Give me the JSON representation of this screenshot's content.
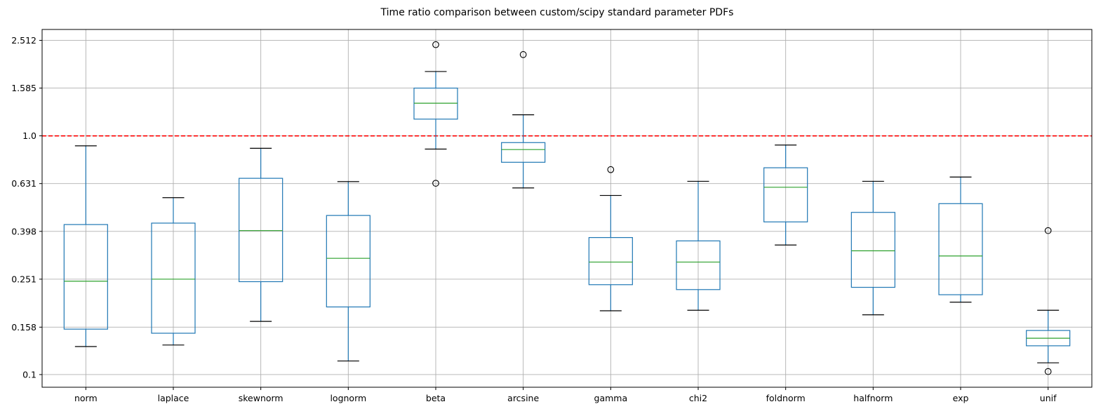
{
  "chart_data": {
    "type": "box",
    "title": "Time ratio comparison between custom/scipy standard parameter PDFs",
    "xlabel": "",
    "ylabel": "",
    "yscale": "log",
    "ylim": [
      0.0885,
      2.79
    ],
    "yticks": [
      0.1,
      0.158,
      0.251,
      0.398,
      0.631,
      1.0,
      1.585,
      2.512
    ],
    "ytick_labels": [
      "0.1",
      "0.158",
      "0.251",
      "0.398",
      "0.631",
      "1.0",
      "1.585",
      "2.512"
    ],
    "grid": true,
    "reference_line": {
      "y": 1.0,
      "color": "#ff0000",
      "style": "dashed"
    },
    "colors": {
      "box": "#1f77b4",
      "median": "#2ca02c",
      "grid": "#b0b0b0",
      "cap": "#000000"
    },
    "categories": [
      "norm",
      "laplace",
      "skewnorm",
      "lognorm",
      "beta",
      "arcsine",
      "gamma",
      "chi2",
      "foldnorm",
      "halfnorm",
      "exp",
      "unif"
    ],
    "boxes": [
      {
        "label": "norm",
        "whislo": 0.131,
        "q1": 0.155,
        "med": 0.246,
        "q3": 0.425,
        "whishi": 0.908,
        "fliers": []
      },
      {
        "label": "laplace",
        "whislo": 0.133,
        "q1": 0.149,
        "med": 0.251,
        "q3": 0.431,
        "whishi": 0.551,
        "fliers": []
      },
      {
        "label": "skewnorm",
        "whislo": 0.167,
        "q1": 0.245,
        "med": 0.401,
        "q3": 0.664,
        "whishi": 0.887,
        "fliers": []
      },
      {
        "label": "lognorm",
        "whislo": 0.114,
        "q1": 0.192,
        "med": 0.307,
        "q3": 0.464,
        "whishi": 0.643,
        "fliers": []
      },
      {
        "label": "beta",
        "whislo": 0.88,
        "q1": 1.175,
        "med": 1.37,
        "q3": 1.585,
        "whishi": 1.86,
        "fliers": [
          2.41,
          0.633
        ]
      },
      {
        "label": "arcsine",
        "whislo": 0.605,
        "q1": 0.775,
        "med": 0.876,
        "q3": 0.937,
        "whishi": 1.225,
        "fliers": [
          2.19
        ]
      },
      {
        "label": "gamma",
        "whislo": 0.185,
        "q1": 0.238,
        "med": 0.296,
        "q3": 0.375,
        "whishi": 0.563,
        "fliers": [
          0.722
        ]
      },
      {
        "label": "chi2",
        "whislo": 0.186,
        "q1": 0.227,
        "med": 0.296,
        "q3": 0.363,
        "whishi": 0.645,
        "fliers": []
      },
      {
        "label": "foldnorm",
        "whislo": 0.349,
        "q1": 0.436,
        "med": 0.609,
        "q3": 0.735,
        "whishi": 0.915,
        "fliers": []
      },
      {
        "label": "halfnorm",
        "whislo": 0.178,
        "q1": 0.232,
        "med": 0.33,
        "q3": 0.478,
        "whishi": 0.645,
        "fliers": []
      },
      {
        "label": "exp",
        "whislo": 0.201,
        "q1": 0.216,
        "med": 0.314,
        "q3": 0.52,
        "whishi": 0.672,
        "fliers": []
      },
      {
        "label": "unif",
        "whislo": 0.112,
        "q1": 0.132,
        "med": 0.142,
        "q3": 0.153,
        "whishi": 0.186,
        "fliers": [
          0.103,
          0.401
        ]
      }
    ]
  }
}
